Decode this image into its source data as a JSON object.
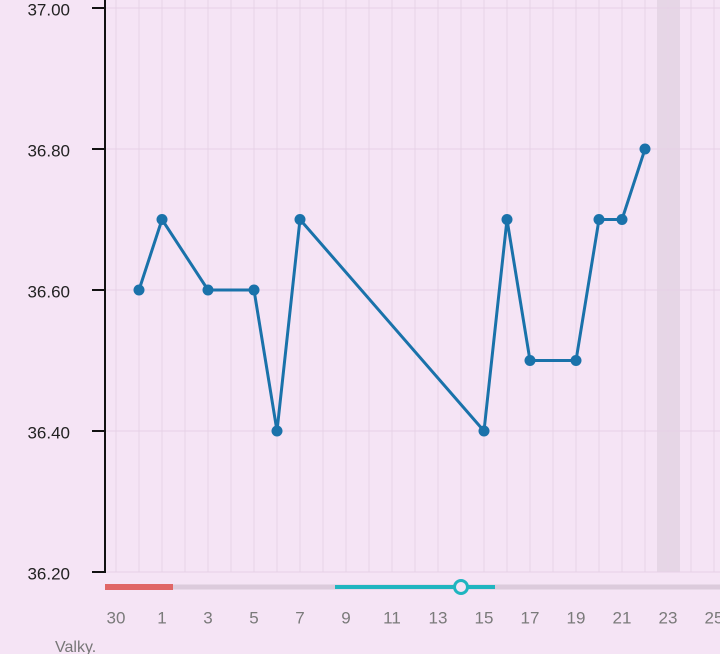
{
  "chart_data": {
    "type": "line",
    "x_label": "Valky.",
    "categories": [
      "30",
      null,
      "1",
      null,
      "3",
      null,
      "5",
      null,
      "7",
      null,
      "9",
      null,
      "11",
      null,
      "13",
      null,
      "15",
      null,
      "17",
      null,
      "19",
      null,
      "21",
      null,
      "23",
      null,
      "25"
    ],
    "series": [
      {
        "color": "#1a72aa",
        "values": [
          null,
          36.6,
          36.7,
          null,
          36.6,
          null,
          36.6,
          36.4,
          36.7,
          null,
          null,
          null,
          null,
          null,
          null,
          null,
          36.4,
          36.7,
          36.5,
          null,
          36.5,
          36.7,
          36.7,
          36.8,
          null,
          null,
          null
        ]
      }
    ],
    "connect_gaps": true,
    "ylim": [
      36.2,
      37.0
    ],
    "yticks": [
      {
        "value": 36.2,
        "label": "36.20"
      },
      {
        "value": 36.4,
        "label": "36.40"
      },
      {
        "value": 36.6,
        "label": "36.60"
      },
      {
        "value": 36.8,
        "label": "36.80"
      },
      {
        "value": 37.0,
        "label": "37.00"
      }
    ],
    "grid": true
  }
}
